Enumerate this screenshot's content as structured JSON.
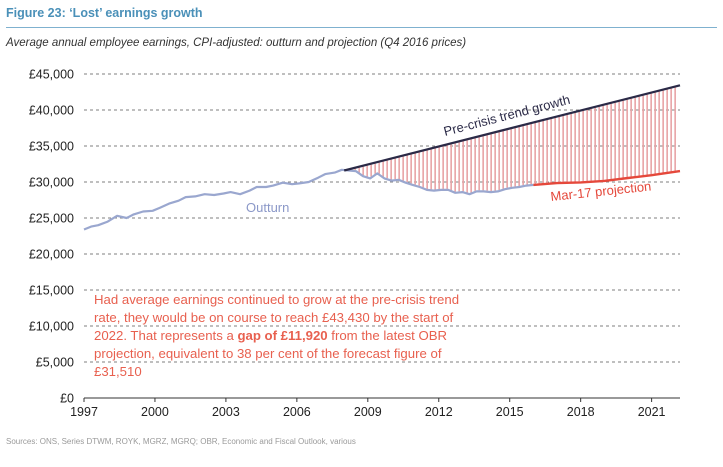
{
  "figure": {
    "title": "Figure 23:  ‘Lost’ earnings growth",
    "subtitle": "Average annual employee earnings, CPI-adjusted: outturn and projection (Q4 2016 prices)",
    "sources": "Sources: ONS, Series DTWM, ROYK, MGRZ, MGRQ; OBR, Economic and Fiscal Outlook, various"
  },
  "annotation": {
    "part1": "Had average earnings continued to grow at the pre-crisis trend rate, they would be on course to reach £43,430 by the start of 2022. That represents a ",
    "highlight": "gap of £11,920",
    "part2": " from the latest OBR projection, equivalent to 38 per cent of the forecast figure of £31,510"
  },
  "colors": {
    "outturn": "#9aa7cf",
    "trend": "#2b2a47",
    "projection": "#e5483b",
    "gap_fill": "#e8a4a6",
    "grid": "#555555",
    "title": "#4a90b8"
  },
  "chart_data": {
    "type": "line",
    "ylim": [
      0,
      45000
    ],
    "xlim": [
      1997,
      2022.2
    ],
    "y_ticks": [
      0,
      5000,
      10000,
      15000,
      20000,
      25000,
      30000,
      35000,
      40000,
      45000
    ],
    "y_tick_labels": [
      "£0",
      "£5,000",
      "£10,000",
      "£15,000",
      "£20,000",
      "£25,000",
      "£30,000",
      "£35,000",
      "£40,000",
      "£45,000"
    ],
    "x_ticks": [
      1997,
      2000,
      2003,
      2006,
      2009,
      2012,
      2015,
      2018,
      2021
    ],
    "x_tick_labels": [
      "1997",
      "2000",
      "2003",
      "2006",
      "2009",
      "2012",
      "2015",
      "2018",
      "2021"
    ],
    "grid": "horizontal dashed",
    "series": [
      {
        "name": "Outturn",
        "style": "line",
        "x": [
          1997.0,
          1997.3,
          1997.6,
          1998.0,
          1998.4,
          1998.8,
          1999.1,
          1999.5,
          1999.9,
          2000.2,
          2000.6,
          2001.0,
          2001.3,
          2001.7,
          2002.1,
          2002.5,
          2002.9,
          2003.2,
          2003.6,
          2004.0,
          2004.3,
          2004.7,
          2005.0,
          2005.4,
          2005.8,
          2006.1,
          2006.5,
          2006.9,
          2007.2,
          2007.6,
          2007.9,
          2008.2,
          2008.5,
          2008.8,
          2009.1,
          2009.4,
          2009.7,
          2010.0,
          2010.3,
          2010.6,
          2010.9,
          2011.2,
          2011.5,
          2011.8,
          2012.1,
          2012.4,
          2012.7,
          2013.0,
          2013.3,
          2013.6,
          2013.9,
          2014.2,
          2014.5,
          2014.8,
          2015.1,
          2015.4,
          2015.7,
          2016.0
        ],
        "y": [
          23400,
          23800,
          24000,
          24500,
          25300,
          25000,
          25500,
          25900,
          26000,
          26400,
          27000,
          27400,
          27900,
          28000,
          28300,
          28200,
          28400,
          28600,
          28300,
          28800,
          29300,
          29300,
          29500,
          29900,
          29700,
          29800,
          30000,
          30600,
          31100,
          31300,
          31700,
          31600,
          31500,
          30800,
          30500,
          31200,
          30500,
          30200,
          30300,
          29900,
          29600,
          29300,
          28900,
          28800,
          28900,
          28900,
          28500,
          28600,
          28300,
          28700,
          28700,
          28600,
          28700,
          29000,
          29200,
          29300,
          29500,
          29600
        ]
      },
      {
        "name": "Pre-crisis trend growth",
        "style": "line",
        "x": [
          2008.0,
          2022.2
        ],
        "y": [
          31600,
          43430
        ]
      },
      {
        "name": "Mar-17 projection",
        "style": "line",
        "x": [
          2016.0,
          2017.0,
          2018.0,
          2019.0,
          2020.0,
          2021.0,
          2022.2
        ],
        "y": [
          29600,
          29850,
          29950,
          30150,
          30550,
          30950,
          31510
        ]
      }
    ],
    "shaded_gap": {
      "from_year": 2008.0,
      "to_year": 2022.2,
      "between": [
        "Pre-crisis trend growth",
        "Outturn / Mar-17 projection"
      ]
    }
  }
}
